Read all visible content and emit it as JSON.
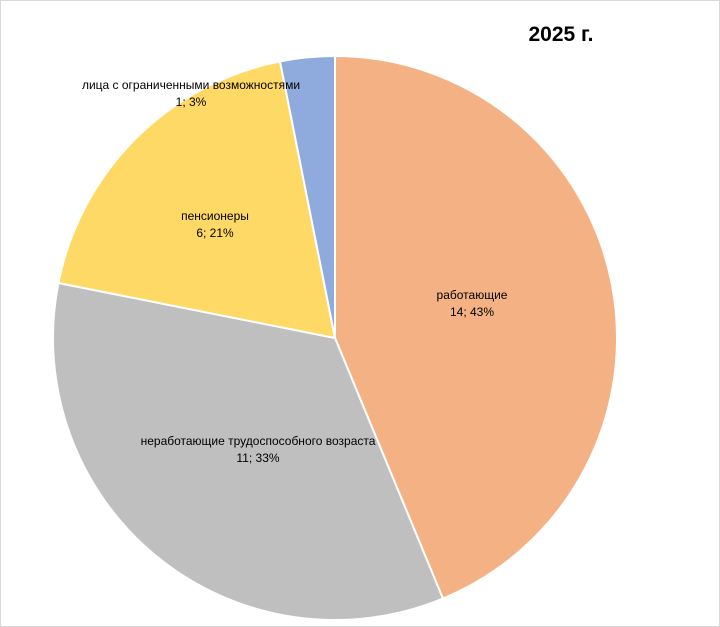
{
  "chart_data": {
    "type": "pie",
    "title": "2025 г.",
    "slices": [
      {
        "name": "работающие",
        "value": 14,
        "percent": "43%",
        "label": "14; 43%",
        "color": "#F4B183"
      },
      {
        "name": "неработающие трудоспособного возраста",
        "value": 11,
        "percent": "33%",
        "label": "11; 33%",
        "color": "#BFBFBF"
      },
      {
        "name": "пенсионеры",
        "value": 6,
        "percent": "21%",
        "label": "6; 21%",
        "color": "#FFD966"
      },
      {
        "name": "лица с ограниченными возможностями",
        "value": 1,
        "percent": "3%",
        "label": "1; 3%",
        "color": "#8FAADC"
      }
    ],
    "legend": "none",
    "data_labels": "category; value; percent"
  }
}
